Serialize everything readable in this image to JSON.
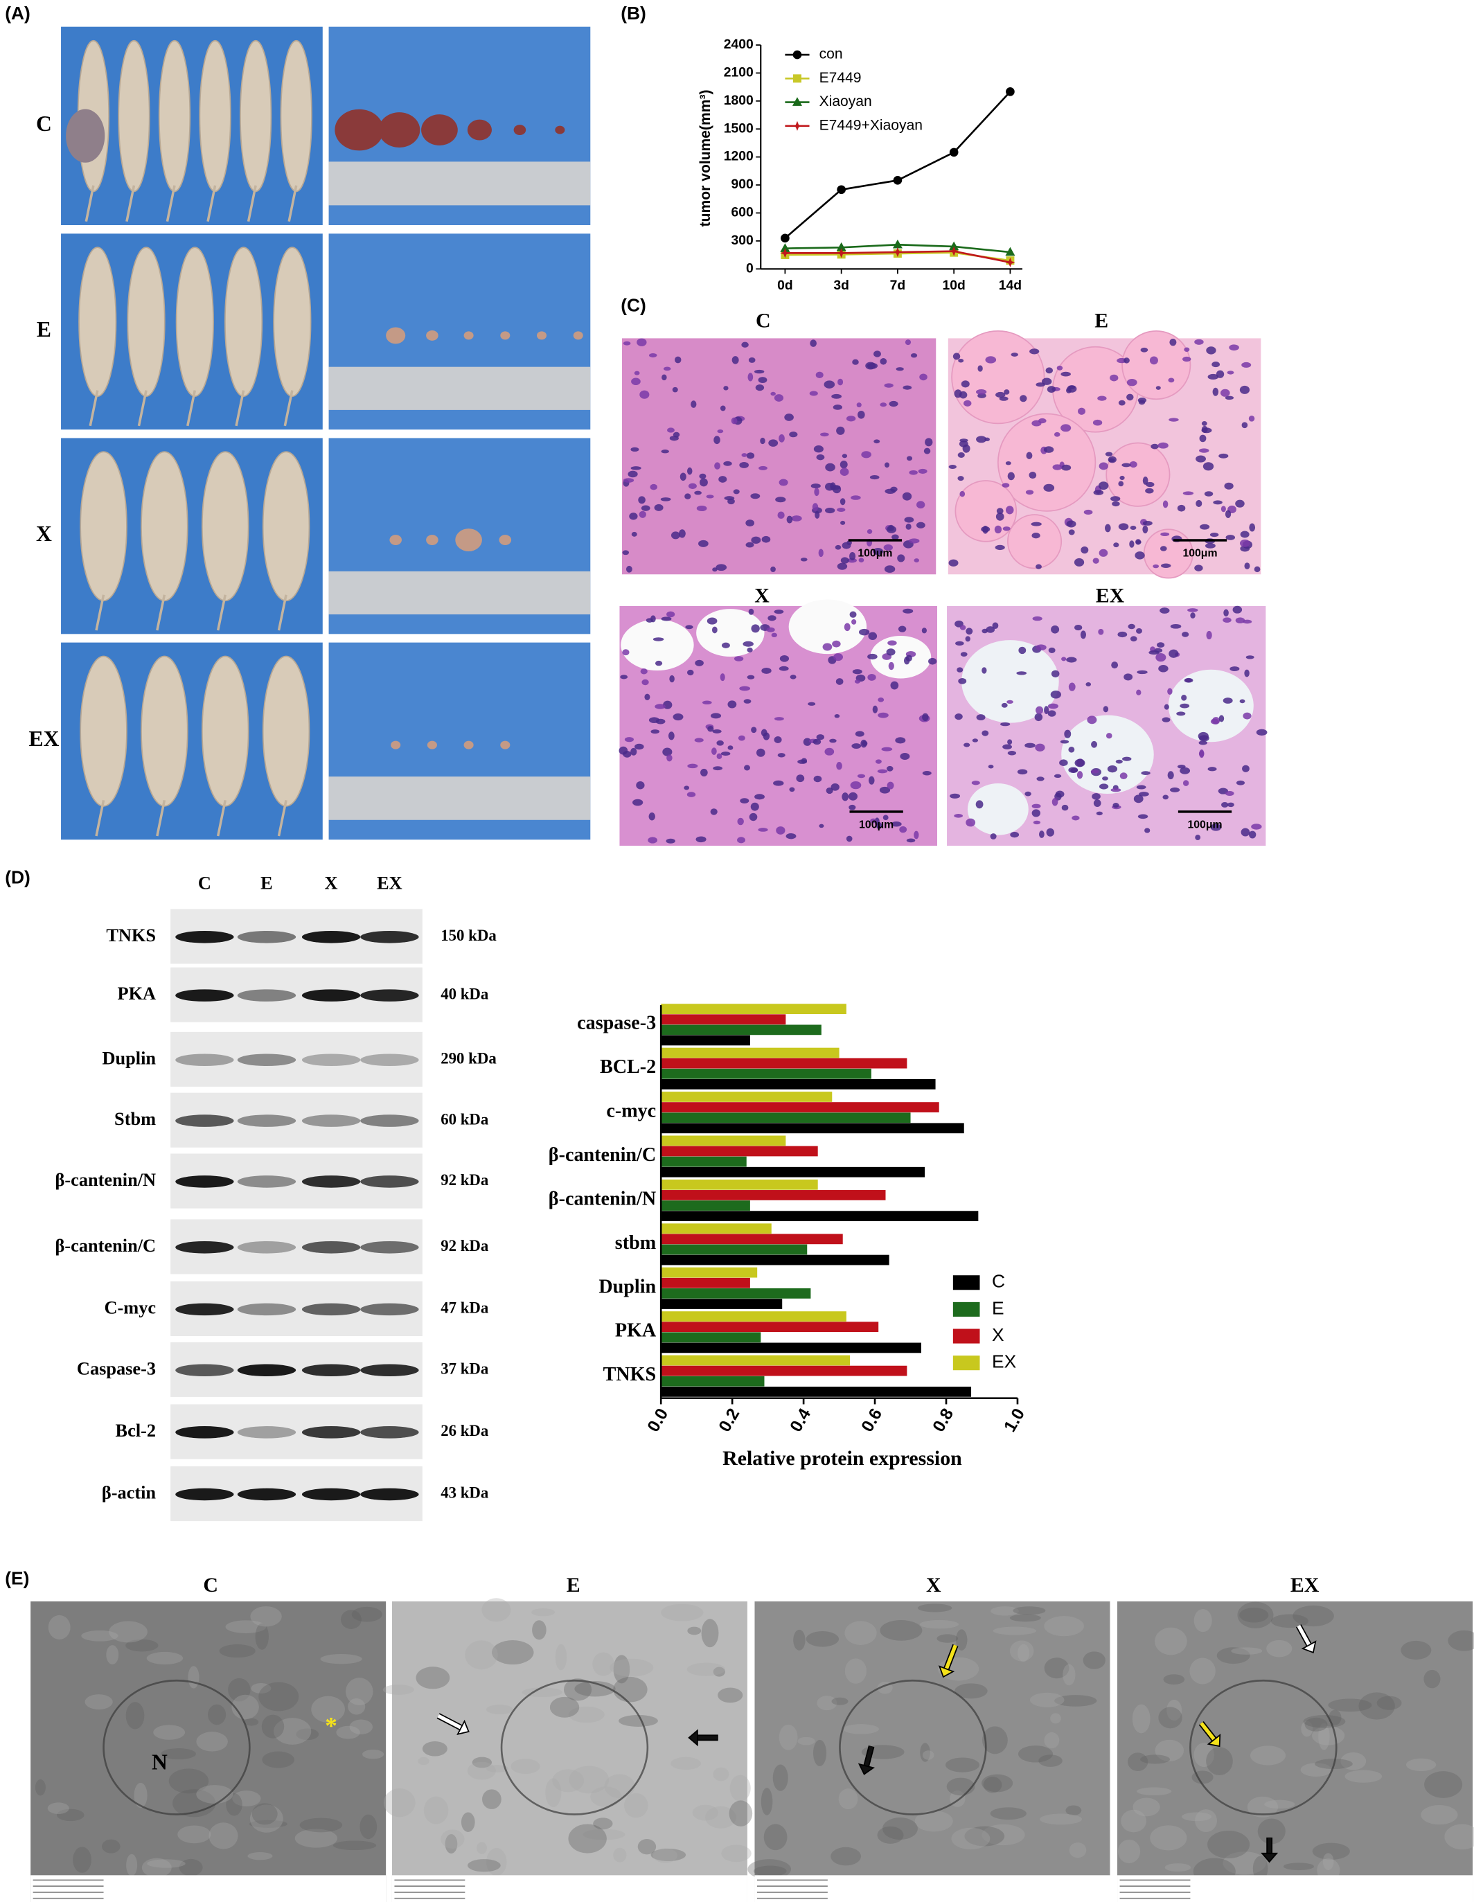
{
  "panel_labels": [
    "(A)",
    "(B)",
    "(C)",
    "(D)",
    "(E)"
  ],
  "panel_a": {
    "rows": [
      "C",
      "E",
      "X",
      "EX"
    ]
  },
  "panel_c": {
    "titles": [
      "C",
      "E",
      "X",
      "EX"
    ],
    "scale_bar": "100μm"
  },
  "panel_d_blot": {
    "lanes": [
      "C",
      "E",
      "X",
      "EX"
    ],
    "proteins": [
      "TNKS",
      "PKA",
      "Duplin",
      "Stbm",
      "β-cantenin/N",
      "β-cantenin/C",
      "C-myc",
      "Caspase-3",
      "Bcl-2",
      "β-actin"
    ],
    "sizes": [
      "150 kDa",
      "40 kDa",
      "290 kDa",
      "60 kDa",
      "92 kDa",
      "92 kDa",
      "47 kDa",
      "37 kDa",
      "26 kDa",
      "43 kDa"
    ]
  },
  "panel_e": {
    "titles": [
      "C",
      "E",
      "X",
      "EX"
    ],
    "annotations": [
      "N",
      "*"
    ]
  },
  "chart_data": [
    {
      "type": "line",
      "y_label": "tumor volume(mm³)",
      "categories": [
        "0d",
        "3d",
        "7d",
        "10d",
        "14d"
      ],
      "ylim": [
        0,
        2400
      ],
      "yticks": [
        0,
        300,
        600,
        900,
        1200,
        1500,
        1800,
        2100,
        2400
      ],
      "series": [
        {
          "name": "con",
          "color": "#000000",
          "marker": "circle",
          "values": [
            330,
            850,
            950,
            1250,
            1900
          ]
        },
        {
          "name": "E7449",
          "color": "#c8c828",
          "marker": "square",
          "values": [
            150,
            155,
            165,
            175,
            90
          ]
        },
        {
          "name": "Xiaoyan",
          "color": "#1a6a1a",
          "marker": "triangle",
          "values": [
            220,
            230,
            260,
            240,
            180
          ]
        },
        {
          "name": "E7449+Xiaoyan",
          "color": "#c0181c",
          "marker": "star",
          "values": [
            170,
            170,
            180,
            190,
            70
          ]
        }
      ]
    },
    {
      "type": "hbar",
      "x_label": "Relative protein expression",
      "categories": [
        "caspase-3",
        "BCL-2",
        "c-myc",
        "β-cantenin/C",
        "β-cantenin/N",
        "stbm",
        "Duplin",
        "PKA",
        "TNKS"
      ],
      "xlim": [
        0,
        1.0
      ],
      "xticks": [
        {
          "value": 0,
          "label": "0.0"
        },
        0.2,
        0.4,
        0.6,
        0.8,
        {
          "value": 1.0,
          "label": "1.0"
        }
      ],
      "series": [
        {
          "name": "C",
          "color": "#000000",
          "values": [
            0.25,
            0.77,
            0.85,
            0.74,
            0.89,
            0.64,
            0.34,
            0.73,
            0.87
          ]
        },
        {
          "name": "E",
          "color": "#1d6b1d",
          "values": [
            0.45,
            0.59,
            0.7,
            0.24,
            0.25,
            0.41,
            0.42,
            0.28,
            0.29
          ]
        },
        {
          "name": "X",
          "color": "#c0101a",
          "values": [
            0.35,
            0.69,
            0.78,
            0.44,
            0.63,
            0.51,
            0.25,
            0.61,
            0.69
          ]
        },
        {
          "name": "EX",
          "color": "#c8c81e",
          "values": [
            0.52,
            0.5,
            0.48,
            0.35,
            0.44,
            0.31,
            0.27,
            0.52,
            0.53
          ]
        }
      ]
    }
  ]
}
